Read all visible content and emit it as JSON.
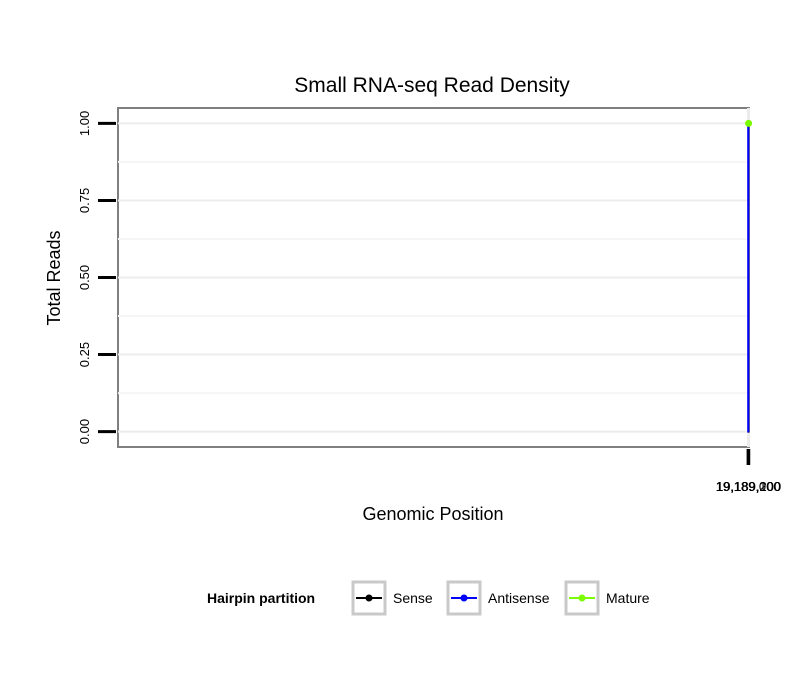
{
  "chart_data": {
    "type": "line",
    "title": "Small RNA-seq Read Density",
    "xlabel": "Genomic Position",
    "ylabel": "Total Reads",
    "xlim": [
      18988992,
      19189282
    ],
    "ylim": [
      -0.05,
      1.05
    ],
    "x_ticks": [
      19189000,
      19189100,
      19189200
    ],
    "x_tick_labels": [
      "19,189,000",
      "19,189,100",
      "19,189,200"
    ],
    "y_ticks": [
      0,
      0.25,
      0.5,
      0.75,
      1
    ],
    "y_tick_labels": [
      "0.00",
      "0.25",
      "0.50",
      "0.75",
      "1.00"
    ],
    "x_minor_gridlines": [
      19189050,
      19189150,
      19189250
    ],
    "y_minor_gridlines": [
      0.125,
      0.375,
      0.625,
      0.875
    ],
    "grid": true,
    "legend_position": "bottom",
    "series": [
      {
        "name": "Sense",
        "color": "#000000",
        "points": [
          [
            19189007,
            0
          ],
          [
            19189142,
            0
          ],
          [
            19189143,
            1
          ],
          [
            19189162,
            1
          ],
          [
            19189163,
            0
          ],
          [
            19189280,
            0
          ]
        ]
      },
      {
        "name": "Antisense",
        "color": "#0000ff",
        "points": [
          [
            19189033,
            0
          ],
          [
            19189034,
            1
          ],
          [
            19189053,
            1
          ],
          [
            19189054,
            0
          ],
          [
            19189142,
            0
          ],
          [
            19189163,
            0
          ]
        ]
      },
      {
        "name": "Mature",
        "color": "#7cfc00",
        "points": [
          [
            19189143,
            1
          ],
          [
            19189162,
            1
          ]
        ]
      }
    ]
  },
  "legend": {
    "title": "Hairpin partition",
    "entries": [
      {
        "label": "Sense",
        "color": "#000000"
      },
      {
        "label": "Antisense",
        "color": "#0000ff"
      },
      {
        "label": "Mature",
        "color": "#7cfc00"
      }
    ]
  }
}
